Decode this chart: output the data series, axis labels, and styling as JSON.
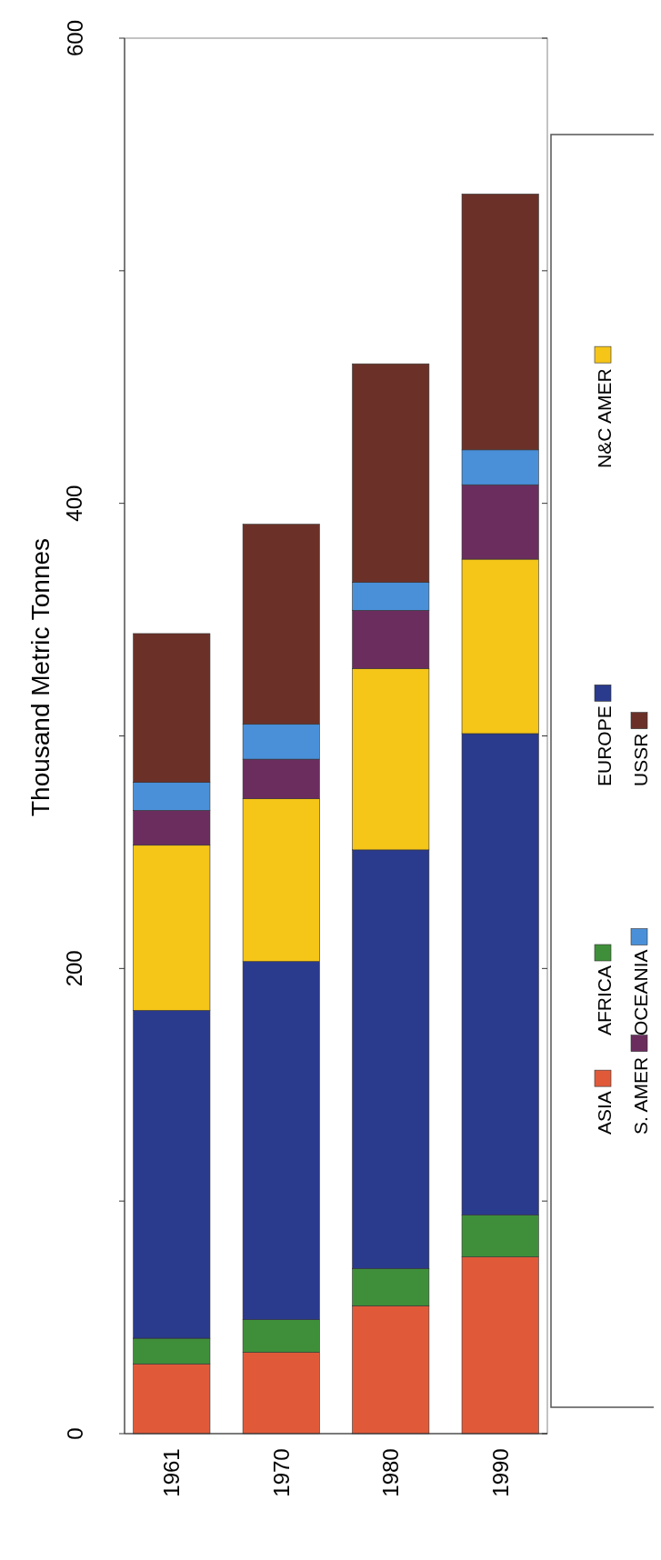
{
  "chart_data": {
    "type": "bar",
    "ylabel": "Thousand Metric Tonnes",
    "categories": [
      "1961",
      "1970",
      "1980",
      "1990"
    ],
    "stacked": true,
    "legend": "right",
    "ylim": [
      0,
      600
    ],
    "yticks": [
      0,
      {
        "value": 100,
        "label": null
      },
      200,
      {
        "value": 300,
        "label": null
      },
      400,
      {
        "value": 500,
        "label": null
      },
      600
    ],
    "series": [
      {
        "name": "ASIA",
        "color": "#e05a3a",
        "values": [
          30,
          35,
          55,
          76
        ]
      },
      {
        "name": "AFRICA",
        "color": "#3f8f3a",
        "values": [
          11,
          14,
          16,
          18
        ]
      },
      {
        "name": "EUROPE",
        "color": "#2a3a8c",
        "values": [
          141,
          154,
          180,
          207
        ]
      },
      {
        "name": "N&C AMER",
        "color": "#f5c518",
        "values": [
          71,
          70,
          78,
          75
        ]
      },
      {
        "name": "S. AMER",
        "color": "#6b2d5e",
        "values": [
          15,
          17,
          25,
          32
        ]
      },
      {
        "name": "OCEANIA",
        "color": "#4a90d9",
        "values": [
          12,
          15,
          12,
          15
        ]
      },
      {
        "name": "USSR",
        "color": "#6b3128",
        "values": [
          64,
          86,
          94,
          110
        ]
      }
    ]
  }
}
